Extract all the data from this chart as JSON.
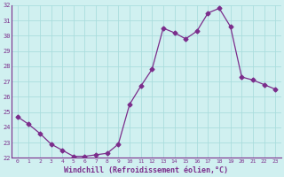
{
  "x": [
    0,
    1,
    2,
    3,
    4,
    5,
    6,
    7,
    8,
    9,
    10,
    11,
    12,
    13,
    14,
    15,
    16,
    17,
    18,
    19,
    20,
    21,
    22,
    23
  ],
  "y": [
    24.7,
    24.2,
    23.6,
    22.9,
    22.5,
    22.1,
    22.1,
    22.2,
    22.3,
    22.9,
    25.5,
    26.7,
    27.8,
    30.5,
    30.2,
    29.8,
    30.3,
    31.5,
    31.8,
    30.6,
    27.3,
    27.1,
    26.8,
    26.5
  ],
  "line_color": "#7b2d8b",
  "marker": "D",
  "marker_size": 2.5,
  "bg_color": "#d0f0f0",
  "grid_color": "#aadddd",
  "xlabel": "Windchill (Refroidissement éolien,°C)",
  "xlabel_color": "#7b2d8b",
  "tick_color": "#7b2d8b",
  "ylim": [
    22,
    32
  ],
  "xlim": [
    -0.5,
    23.5
  ],
  "yticks": [
    22,
    23,
    24,
    25,
    26,
    27,
    28,
    29,
    30,
    31,
    32
  ],
  "xticks": [
    0,
    1,
    2,
    3,
    4,
    5,
    6,
    7,
    8,
    9,
    10,
    11,
    12,
    13,
    14,
    15,
    16,
    17,
    18,
    19,
    20,
    21,
    22,
    23
  ],
  "spine_color": "#7b2d8b"
}
